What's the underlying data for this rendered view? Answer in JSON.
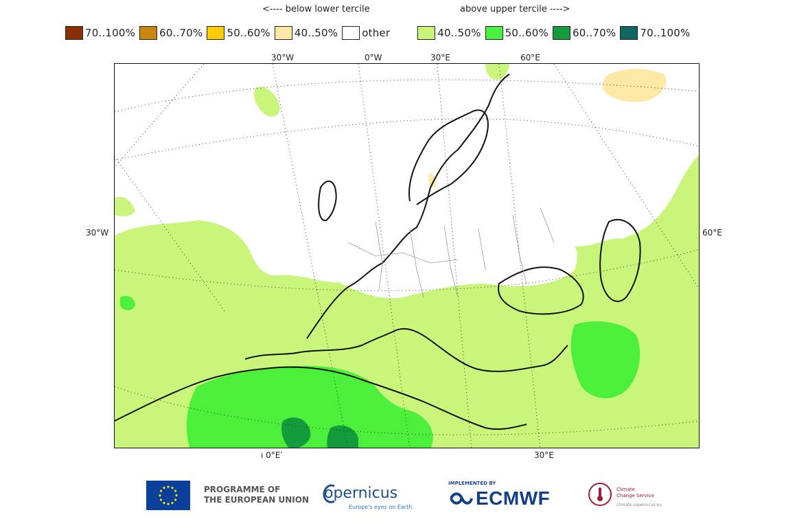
{
  "header": {
    "below_label": "<---- below lower tercile",
    "above_label": "above upper tercile ---->"
  },
  "legend": [
    {
      "label": "70..100%",
      "color": "#8b2e05"
    },
    {
      "label": "60..70%",
      "color": "#c98610"
    },
    {
      "label": "50..60%",
      "color": "#ffcc00"
    },
    {
      "label": "40..50%",
      "color": "#fde8a6"
    },
    {
      "label": "other",
      "color": "#ffffff"
    },
    {
      "label": "40..50%",
      "color": "#c8f57a"
    },
    {
      "label": "50..60%",
      "color": "#4cf03a"
    },
    {
      "label": "60..70%",
      "color": "#149c3c"
    },
    {
      "label": "70..100%",
      "color": "#0e6660"
    }
  ],
  "map": {
    "top_ticks": [
      "30°W",
      "0°W",
      "30°E",
      "60°E"
    ],
    "left_tick": "30°W",
    "right_tick": "60°E",
    "bottom_ticks": [
      "ı 0°E′",
      "30°E"
    ]
  },
  "footer": {
    "eu_line1": "PROGRAMME OF",
    "eu_line2": "THE EUROPEAN UNION",
    "copernicus": "opernicus",
    "copernicus_tagline": "Europe's eyes on Earth",
    "ecmwf_implemented": "IMPLEMENTED BY",
    "ecmwf": "ECMWF",
    "c3s_line1": "Climate",
    "c3s_line2": "Change Service",
    "c3s_url": "climate.copernicus.eu"
  }
}
